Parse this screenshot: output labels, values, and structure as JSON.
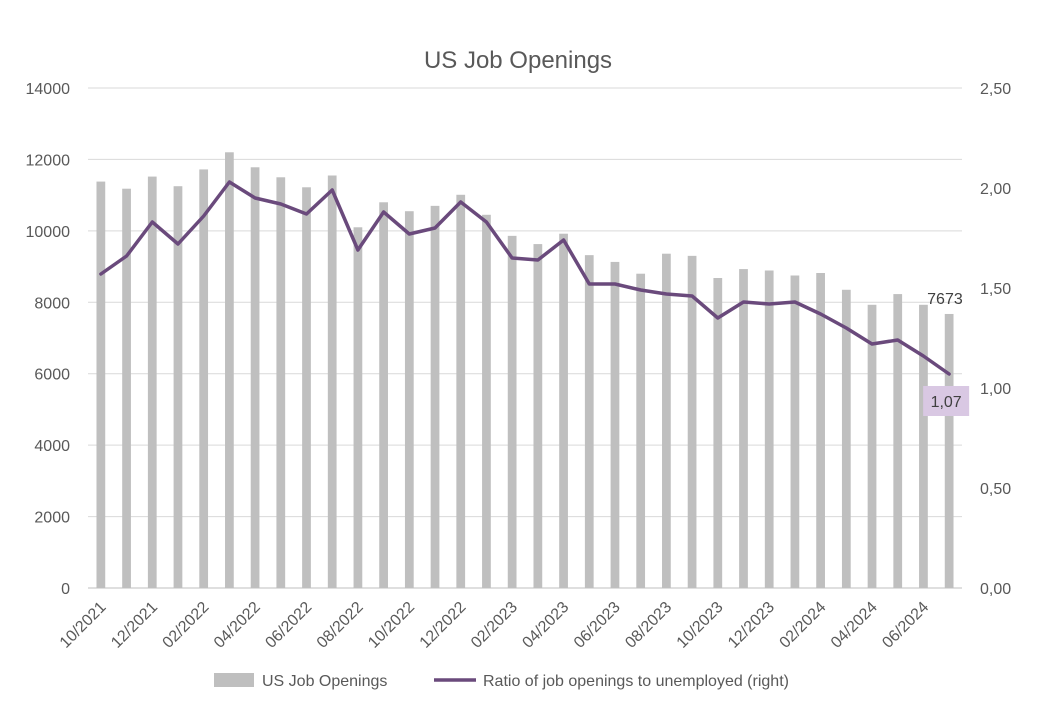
{
  "chart_data": {
    "type": "bar+line",
    "title": "US Job Openings",
    "x_tick_labels": [
      "10/2021",
      "12/2021",
      "02/2022",
      "04/2022",
      "06/2022",
      "08/2022",
      "10/2022",
      "12/2022",
      "02/2023",
      "04/2023",
      "06/2023",
      "08/2023",
      "10/2023",
      "12/2023",
      "02/2024",
      "04/2024",
      "06/2024"
    ],
    "categories": [
      "10/2021",
      "11/2021",
      "12/2021",
      "01/2022",
      "02/2022",
      "03/2022",
      "04/2022",
      "05/2022",
      "06/2022",
      "07/2022",
      "08/2022",
      "09/2022",
      "10/2022",
      "11/2022",
      "12/2022",
      "01/2023",
      "02/2023",
      "03/2023",
      "04/2023",
      "05/2023",
      "06/2023",
      "07/2023",
      "08/2023",
      "09/2023",
      "10/2023",
      "11/2023",
      "12/2023",
      "01/2024",
      "02/2024",
      "03/2024",
      "04/2024",
      "05/2024",
      "06/2024",
      "07/2024"
    ],
    "left_axis": {
      "min": 0,
      "max": 14000,
      "ticks": [
        "0",
        "2000",
        "4000",
        "6000",
        "8000",
        "10000",
        "12000",
        "14000"
      ]
    },
    "right_axis": {
      "min": 0,
      "max": 2.5,
      "ticks": [
        "0,00",
        "0,50",
        "1,00",
        "1,50",
        "2,00",
        "2,50"
      ]
    },
    "grid": true,
    "legend_position": "bottom",
    "series": [
      {
        "name": "US Job Openings",
        "kind": "bar",
        "axis": "left",
        "color": "#bfbfbf",
        "values": [
          11380,
          11180,
          11520,
          11250,
          11720,
          12200,
          11780,
          11500,
          11220,
          11550,
          10100,
          10800,
          10550,
          10700,
          11010,
          10450,
          9860,
          9630,
          9920,
          9320,
          9130,
          8800,
          9360,
          9300,
          8680,
          8930,
          8890,
          8750,
          8820,
          8350,
          7930,
          8230,
          7930,
          7673
        ]
      },
      {
        "name": "Ratio of job openings to unemployed (right)",
        "kind": "line",
        "axis": "right",
        "color": "#6a4a7c",
        "values": [
          1.57,
          1.66,
          1.83,
          1.72,
          1.86,
          2.03,
          1.95,
          1.92,
          1.87,
          1.99,
          1.69,
          1.88,
          1.77,
          1.8,
          1.93,
          1.83,
          1.65,
          1.64,
          1.74,
          1.52,
          1.52,
          1.49,
          1.47,
          1.46,
          1.35,
          1.43,
          1.42,
          1.43,
          1.37,
          1.3,
          1.22,
          1.24,
          1.16,
          1.07
        ]
      }
    ],
    "annotations": {
      "last_bar_label": "7673",
      "last_ratio_label": "1,07",
      "last_ratio_label_bg": "#d9c8e3"
    }
  }
}
